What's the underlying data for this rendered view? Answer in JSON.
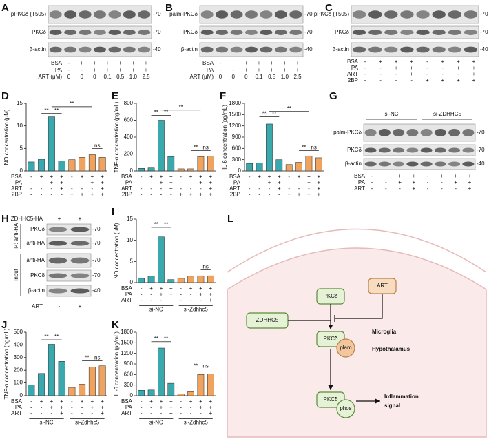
{
  "blots": [
    {
      "panel": "A",
      "rows": [
        {
          "label": "pPKCδ (T505)",
          "marker": "-70"
        },
        {
          "label": "PKCδ",
          "marker": "-70"
        },
        {
          "label": "β-actin",
          "marker": "-40"
        }
      ],
      "conditions": [
        {
          "label": "BSA",
          "signs": [
            "-",
            "+",
            "+",
            "+",
            "+",
            "+",
            "+"
          ]
        },
        {
          "label": "PA",
          "signs": [
            "-",
            "-",
            "+",
            "+",
            "+",
            "+",
            "+"
          ]
        },
        {
          "label": "ART (μM)",
          "signs": [
            "0",
            "0",
            "0",
            "0.1",
            "0.5",
            "1.0",
            "2.5"
          ]
        }
      ]
    },
    {
      "panel": "B",
      "rows": [
        {
          "label": "palm-PKCδ",
          "marker": "-70"
        },
        {
          "label": "PKCδ",
          "marker": "-70"
        },
        {
          "label": "β-actin",
          "marker": "-40"
        }
      ],
      "conditions": [
        {
          "label": "BSA",
          "signs": [
            "-",
            "+",
            "+",
            "+",
            "+",
            "+",
            "+"
          ]
        },
        {
          "label": "PA",
          "signs": [
            "-",
            "-",
            "+",
            "+",
            "+",
            "+",
            "+"
          ]
        },
        {
          "label": "ART (μM)",
          "signs": [
            "0",
            "0",
            "0",
            "0.1",
            "0.5",
            "1.0",
            "2.5"
          ]
        }
      ]
    },
    {
      "panel": "C",
      "rows": [
        {
          "label": "pPKCδ (T505)",
          "marker": "-70"
        },
        {
          "label": "PKCδ",
          "marker": "-70"
        },
        {
          "label": "β-actin",
          "marker": "-40"
        }
      ],
      "conditions": [
        {
          "label": "BSA",
          "signs": [
            "-",
            "+",
            "+",
            "+",
            "-",
            "+",
            "+",
            "+"
          ]
        },
        {
          "label": "PA",
          "signs": [
            "-",
            "-",
            "+",
            "+",
            "-",
            "-",
            "+",
            "+"
          ]
        },
        {
          "label": "ART",
          "signs": [
            "-",
            "-",
            "-",
            "+",
            "-",
            "-",
            "-",
            "+"
          ]
        },
        {
          "label": "2BP",
          "signs": [
            "-",
            "-",
            "-",
            "-",
            "+",
            "+",
            "+",
            "+"
          ]
        }
      ]
    },
    {
      "panel": "G",
      "groups": [
        "si-NC",
        "si-ZDHHC5"
      ],
      "rows": [
        {
          "label": "palm-PKCδ",
          "marker": "-70"
        },
        {
          "label": "PKCδ",
          "marker": "-70"
        },
        {
          "label": "β-actin",
          "marker": "-40"
        }
      ],
      "conditions": [
        {
          "label": "BSA",
          "signs": [
            "-",
            "+",
            "+",
            "+",
            "-",
            "+",
            "+",
            "+"
          ]
        },
        {
          "label": "PA",
          "signs": [
            "-",
            "-",
            "+",
            "+",
            "-",
            "-",
            "+",
            "+"
          ]
        },
        {
          "label": "ART",
          "signs": [
            "-",
            "-",
            "-",
            "+",
            "-",
            "-",
            "-",
            "+"
          ]
        }
      ]
    },
    {
      "panel": "H",
      "sections": [
        "IP: anti-HA",
        "Input"
      ],
      "rows": [
        {
          "label": "PKCδ",
          "marker": "-70"
        },
        {
          "label": "anti-HA",
          "marker": "-70"
        },
        {
          "label": "anti-HA",
          "marker": "-70"
        },
        {
          "label": "PKCδ",
          "marker": "-70"
        },
        {
          "label": "β-actin",
          "marker": "-40"
        }
      ],
      "conditions": [
        {
          "label": "ZDHHC5-HA",
          "signs": [
            "+",
            "+"
          ]
        },
        {
          "label": "ART",
          "signs": [
            "-",
            "+"
          ]
        }
      ]
    }
  ],
  "chart_data": [
    {
      "panel": "D",
      "type": "bar",
      "ylabel": "NO concentration (μM)",
      "ylim": [
        0,
        15
      ],
      "yticks": [
        0,
        5,
        10,
        15
      ],
      "values": [
        2,
        2.6,
        12,
        2.2,
        2.5,
        3,
        3.6,
        3
      ],
      "colors": [
        "#3aa9ad",
        "#3aa9ad",
        "#3aa9ad",
        "#3aa9ad",
        "#f0a35e",
        "#f0a35e",
        "#f0a35e",
        "#f0a35e"
      ],
      "rows": [
        {
          "label": "BSA",
          "signs": [
            "-",
            "+",
            "+",
            "+",
            "-",
            "+",
            "+",
            "+"
          ]
        },
        {
          "label": "PA",
          "signs": [
            "-",
            "-",
            "+",
            "+",
            "-",
            "-",
            "+",
            "+"
          ]
        },
        {
          "label": "ART",
          "signs": [
            "-",
            "-",
            "-",
            "+",
            "-",
            "-",
            "-",
            "+"
          ]
        },
        {
          "label": "2BP",
          "signs": [
            "-",
            "-",
            "-",
            "-",
            "+",
            "+",
            "+",
            "+"
          ]
        }
      ],
      "annotations": [
        "**",
        "**",
        "**",
        "ns"
      ]
    },
    {
      "panel": "E",
      "type": "bar",
      "ylabel": "TNF-α concentration (pg/mL)",
      "ylim": [
        0,
        800
      ],
      "yticks": [
        0,
        200,
        400,
        600,
        800
      ],
      "values": [
        30,
        35,
        600,
        170,
        25,
        25,
        170,
        175
      ],
      "colors": [
        "#3aa9ad",
        "#3aa9ad",
        "#3aa9ad",
        "#3aa9ad",
        "#f0a35e",
        "#f0a35e",
        "#f0a35e",
        "#f0a35e"
      ],
      "rows": [
        {
          "label": "BSA",
          "signs": [
            "-",
            "+",
            "+",
            "+",
            "-",
            "+",
            "+",
            "+"
          ]
        },
        {
          "label": "PA",
          "signs": [
            "-",
            "-",
            "+",
            "+",
            "-",
            "-",
            "+",
            "+"
          ]
        },
        {
          "label": "ART",
          "signs": [
            "-",
            "-",
            "-",
            "+",
            "-",
            "-",
            "-",
            "+"
          ]
        },
        {
          "label": "2BP",
          "signs": [
            "-",
            "-",
            "-",
            "-",
            "+",
            "+",
            "+",
            "+"
          ]
        }
      ],
      "annotations": [
        "**",
        "**",
        "**",
        "**",
        "ns"
      ]
    },
    {
      "panel": "F",
      "type": "bar",
      "ylabel": "IL-6 concentration (pg/mL)",
      "ylim": [
        0,
        1800
      ],
      "yticks": [
        0,
        300,
        600,
        900,
        1200,
        1500,
        1800
      ],
      "values": [
        200,
        210,
        1250,
        300,
        170,
        230,
        400,
        350
      ],
      "colors": [
        "#3aa9ad",
        "#3aa9ad",
        "#3aa9ad",
        "#3aa9ad",
        "#f0a35e",
        "#f0a35e",
        "#f0a35e",
        "#f0a35e"
      ],
      "rows": [
        {
          "label": "BSA",
          "signs": [
            "-",
            "+",
            "+",
            "+",
            "-",
            "+",
            "+",
            "+"
          ]
        },
        {
          "label": "PA",
          "signs": [
            "-",
            "-",
            "+",
            "+",
            "-",
            "-",
            "+",
            "+"
          ]
        },
        {
          "label": "ART",
          "signs": [
            "-",
            "-",
            "-",
            "+",
            "-",
            "-",
            "-",
            "+"
          ]
        },
        {
          "label": "2BP",
          "signs": [
            "-",
            "-",
            "-",
            "-",
            "+",
            "+",
            "+",
            "+"
          ]
        }
      ],
      "annotations": [
        "**",
        "**",
        "**",
        "**",
        "ns"
      ]
    },
    {
      "panel": "I",
      "type": "bar",
      "ylabel": "NO concentration (μM)",
      "ylim": [
        0,
        15
      ],
      "yticks": [
        0,
        5,
        10,
        15
      ],
      "values": [
        1,
        1.5,
        10.8,
        0.7,
        1,
        1.5,
        1.6,
        1.6
      ],
      "colors": [
        "#3aa9ad",
        "#3aa9ad",
        "#3aa9ad",
        "#3aa9ad",
        "#f0a35e",
        "#f0a35e",
        "#f0a35e",
        "#f0a35e"
      ],
      "rows": [
        {
          "label": "BSA",
          "signs": [
            "-",
            "+",
            "+",
            "+",
            "-",
            "+",
            "+",
            "+"
          ]
        },
        {
          "label": "PA",
          "signs": [
            "-",
            "-",
            "+",
            "+",
            "-",
            "-",
            "+",
            "+"
          ]
        },
        {
          "label": "ART",
          "signs": [
            "-",
            "-",
            "-",
            "+",
            "-",
            "-",
            "-",
            "+"
          ]
        }
      ],
      "groups": [
        "si-NC",
        "si-Zdhhc5"
      ],
      "annotations": [
        "**",
        "**",
        "ns"
      ]
    },
    {
      "panel": "J",
      "type": "bar",
      "ylabel": "TNF-α concentration (pg/mL)",
      "ylim": [
        0,
        500
      ],
      "yticks": [
        0,
        100,
        200,
        300,
        400,
        500
      ],
      "values": [
        85,
        175,
        405,
        270,
        65,
        90,
        225,
        235
      ],
      "colors": [
        "#3aa9ad",
        "#3aa9ad",
        "#3aa9ad",
        "#3aa9ad",
        "#f0a35e",
        "#f0a35e",
        "#f0a35e",
        "#f0a35e"
      ],
      "rows": [
        {
          "label": "BSA",
          "signs": [
            "-",
            "+",
            "+",
            "+",
            "-",
            "+",
            "+",
            "+"
          ]
        },
        {
          "label": "PA",
          "signs": [
            "-",
            "-",
            "+",
            "+",
            "-",
            "-",
            "+",
            "+"
          ]
        },
        {
          "label": "ART",
          "signs": [
            "-",
            "-",
            "-",
            "+",
            "-",
            "-",
            "-",
            "+"
          ]
        }
      ],
      "groups": [
        "si-NC",
        "si-Zdhhc5"
      ],
      "annotations": [
        "**",
        "**",
        "**",
        "ns"
      ]
    },
    {
      "panel": "K",
      "type": "bar",
      "ylabel": "IL-6 concentration (pg/mL)",
      "ylim": [
        0,
        1800
      ],
      "yticks": [
        0,
        300,
        600,
        900,
        1200,
        1500,
        1800
      ],
      "values": [
        150,
        160,
        1350,
        350,
        50,
        110,
        600,
        620
      ],
      "colors": [
        "#3aa9ad",
        "#3aa9ad",
        "#3aa9ad",
        "#3aa9ad",
        "#f0a35e",
        "#f0a35e",
        "#f0a35e",
        "#f0a35e"
      ],
      "rows": [
        {
          "label": "BSA",
          "signs": [
            "-",
            "+",
            "+",
            "+",
            "-",
            "+",
            "+",
            "+"
          ]
        },
        {
          "label": "PA",
          "signs": [
            "-",
            "-",
            "+",
            "+",
            "-",
            "-",
            "+",
            "+"
          ]
        },
        {
          "label": "ART",
          "signs": [
            "-",
            "-",
            "-",
            "+",
            "-",
            "-",
            "-",
            "+"
          ]
        }
      ],
      "groups": [
        "si-NC",
        "si-Zdhhc5"
      ],
      "annotations": [
        "**",
        "**",
        "**",
        "ns"
      ]
    }
  ],
  "diagram": {
    "panel": "L",
    "nodes": [
      {
        "label": "PKCδ"
      },
      {
        "label": "ART"
      },
      {
        "label": "ZDHHC5"
      },
      {
        "label": "PKCδ",
        "tag": "plam"
      },
      {
        "label": "PKCδ",
        "tag": "phos"
      }
    ],
    "output": [
      "Inflammation",
      "signal"
    ],
    "regions": [
      "Microglia",
      "Hypothalamus"
    ]
  }
}
